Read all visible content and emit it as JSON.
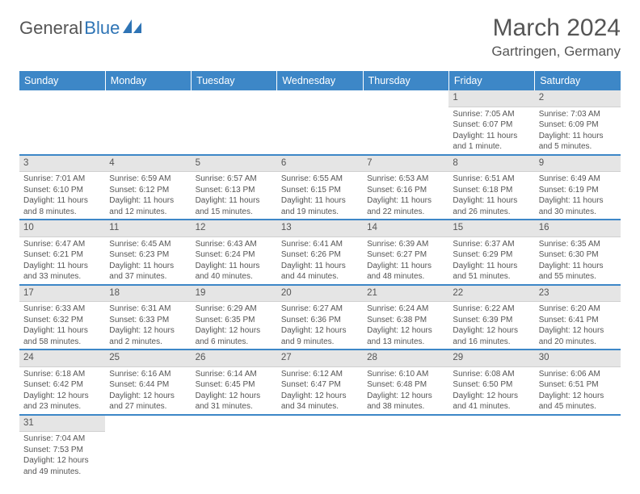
{
  "logo": {
    "general": "General",
    "blue": "Blue"
  },
  "title": "March 2024",
  "location": "Gartringen, Germany",
  "colors": {
    "header_bg": "#3d87c7",
    "header_text": "#ffffff",
    "daynum_bg": "#e5e5e5",
    "border": "#3d87c7",
    "text": "#555555",
    "logo_blue": "#2e74b5"
  },
  "weekdays": [
    "Sunday",
    "Monday",
    "Tuesday",
    "Wednesday",
    "Thursday",
    "Friday",
    "Saturday"
  ],
  "weeks": [
    [
      null,
      null,
      null,
      null,
      null,
      {
        "n": "1",
        "sr": "Sunrise: 7:05 AM",
        "ss": "Sunset: 6:07 PM",
        "d1": "Daylight: 11 hours",
        "d2": "and 1 minute."
      },
      {
        "n": "2",
        "sr": "Sunrise: 7:03 AM",
        "ss": "Sunset: 6:09 PM",
        "d1": "Daylight: 11 hours",
        "d2": "and 5 minutes."
      }
    ],
    [
      {
        "n": "3",
        "sr": "Sunrise: 7:01 AM",
        "ss": "Sunset: 6:10 PM",
        "d1": "Daylight: 11 hours",
        "d2": "and 8 minutes."
      },
      {
        "n": "4",
        "sr": "Sunrise: 6:59 AM",
        "ss": "Sunset: 6:12 PM",
        "d1": "Daylight: 11 hours",
        "d2": "and 12 minutes."
      },
      {
        "n": "5",
        "sr": "Sunrise: 6:57 AM",
        "ss": "Sunset: 6:13 PM",
        "d1": "Daylight: 11 hours",
        "d2": "and 15 minutes."
      },
      {
        "n": "6",
        "sr": "Sunrise: 6:55 AM",
        "ss": "Sunset: 6:15 PM",
        "d1": "Daylight: 11 hours",
        "d2": "and 19 minutes."
      },
      {
        "n": "7",
        "sr": "Sunrise: 6:53 AM",
        "ss": "Sunset: 6:16 PM",
        "d1": "Daylight: 11 hours",
        "d2": "and 22 minutes."
      },
      {
        "n": "8",
        "sr": "Sunrise: 6:51 AM",
        "ss": "Sunset: 6:18 PM",
        "d1": "Daylight: 11 hours",
        "d2": "and 26 minutes."
      },
      {
        "n": "9",
        "sr": "Sunrise: 6:49 AM",
        "ss": "Sunset: 6:19 PM",
        "d1": "Daylight: 11 hours",
        "d2": "and 30 minutes."
      }
    ],
    [
      {
        "n": "10",
        "sr": "Sunrise: 6:47 AM",
        "ss": "Sunset: 6:21 PM",
        "d1": "Daylight: 11 hours",
        "d2": "and 33 minutes."
      },
      {
        "n": "11",
        "sr": "Sunrise: 6:45 AM",
        "ss": "Sunset: 6:23 PM",
        "d1": "Daylight: 11 hours",
        "d2": "and 37 minutes."
      },
      {
        "n": "12",
        "sr": "Sunrise: 6:43 AM",
        "ss": "Sunset: 6:24 PM",
        "d1": "Daylight: 11 hours",
        "d2": "and 40 minutes."
      },
      {
        "n": "13",
        "sr": "Sunrise: 6:41 AM",
        "ss": "Sunset: 6:26 PM",
        "d1": "Daylight: 11 hours",
        "d2": "and 44 minutes."
      },
      {
        "n": "14",
        "sr": "Sunrise: 6:39 AM",
        "ss": "Sunset: 6:27 PM",
        "d1": "Daylight: 11 hours",
        "d2": "and 48 minutes."
      },
      {
        "n": "15",
        "sr": "Sunrise: 6:37 AM",
        "ss": "Sunset: 6:29 PM",
        "d1": "Daylight: 11 hours",
        "d2": "and 51 minutes."
      },
      {
        "n": "16",
        "sr": "Sunrise: 6:35 AM",
        "ss": "Sunset: 6:30 PM",
        "d1": "Daylight: 11 hours",
        "d2": "and 55 minutes."
      }
    ],
    [
      {
        "n": "17",
        "sr": "Sunrise: 6:33 AM",
        "ss": "Sunset: 6:32 PM",
        "d1": "Daylight: 11 hours",
        "d2": "and 58 minutes."
      },
      {
        "n": "18",
        "sr": "Sunrise: 6:31 AM",
        "ss": "Sunset: 6:33 PM",
        "d1": "Daylight: 12 hours",
        "d2": "and 2 minutes."
      },
      {
        "n": "19",
        "sr": "Sunrise: 6:29 AM",
        "ss": "Sunset: 6:35 PM",
        "d1": "Daylight: 12 hours",
        "d2": "and 6 minutes."
      },
      {
        "n": "20",
        "sr": "Sunrise: 6:27 AM",
        "ss": "Sunset: 6:36 PM",
        "d1": "Daylight: 12 hours",
        "d2": "and 9 minutes."
      },
      {
        "n": "21",
        "sr": "Sunrise: 6:24 AM",
        "ss": "Sunset: 6:38 PM",
        "d1": "Daylight: 12 hours",
        "d2": "and 13 minutes."
      },
      {
        "n": "22",
        "sr": "Sunrise: 6:22 AM",
        "ss": "Sunset: 6:39 PM",
        "d1": "Daylight: 12 hours",
        "d2": "and 16 minutes."
      },
      {
        "n": "23",
        "sr": "Sunrise: 6:20 AM",
        "ss": "Sunset: 6:41 PM",
        "d1": "Daylight: 12 hours",
        "d2": "and 20 minutes."
      }
    ],
    [
      {
        "n": "24",
        "sr": "Sunrise: 6:18 AM",
        "ss": "Sunset: 6:42 PM",
        "d1": "Daylight: 12 hours",
        "d2": "and 23 minutes."
      },
      {
        "n": "25",
        "sr": "Sunrise: 6:16 AM",
        "ss": "Sunset: 6:44 PM",
        "d1": "Daylight: 12 hours",
        "d2": "and 27 minutes."
      },
      {
        "n": "26",
        "sr": "Sunrise: 6:14 AM",
        "ss": "Sunset: 6:45 PM",
        "d1": "Daylight: 12 hours",
        "d2": "and 31 minutes."
      },
      {
        "n": "27",
        "sr": "Sunrise: 6:12 AM",
        "ss": "Sunset: 6:47 PM",
        "d1": "Daylight: 12 hours",
        "d2": "and 34 minutes."
      },
      {
        "n": "28",
        "sr": "Sunrise: 6:10 AM",
        "ss": "Sunset: 6:48 PM",
        "d1": "Daylight: 12 hours",
        "d2": "and 38 minutes."
      },
      {
        "n": "29",
        "sr": "Sunrise: 6:08 AM",
        "ss": "Sunset: 6:50 PM",
        "d1": "Daylight: 12 hours",
        "d2": "and 41 minutes."
      },
      {
        "n": "30",
        "sr": "Sunrise: 6:06 AM",
        "ss": "Sunset: 6:51 PM",
        "d1": "Daylight: 12 hours",
        "d2": "and 45 minutes."
      }
    ],
    [
      {
        "n": "31",
        "sr": "Sunrise: 7:04 AM",
        "ss": "Sunset: 7:53 PM",
        "d1": "Daylight: 12 hours",
        "d2": "and 49 minutes."
      },
      null,
      null,
      null,
      null,
      null,
      null
    ]
  ]
}
